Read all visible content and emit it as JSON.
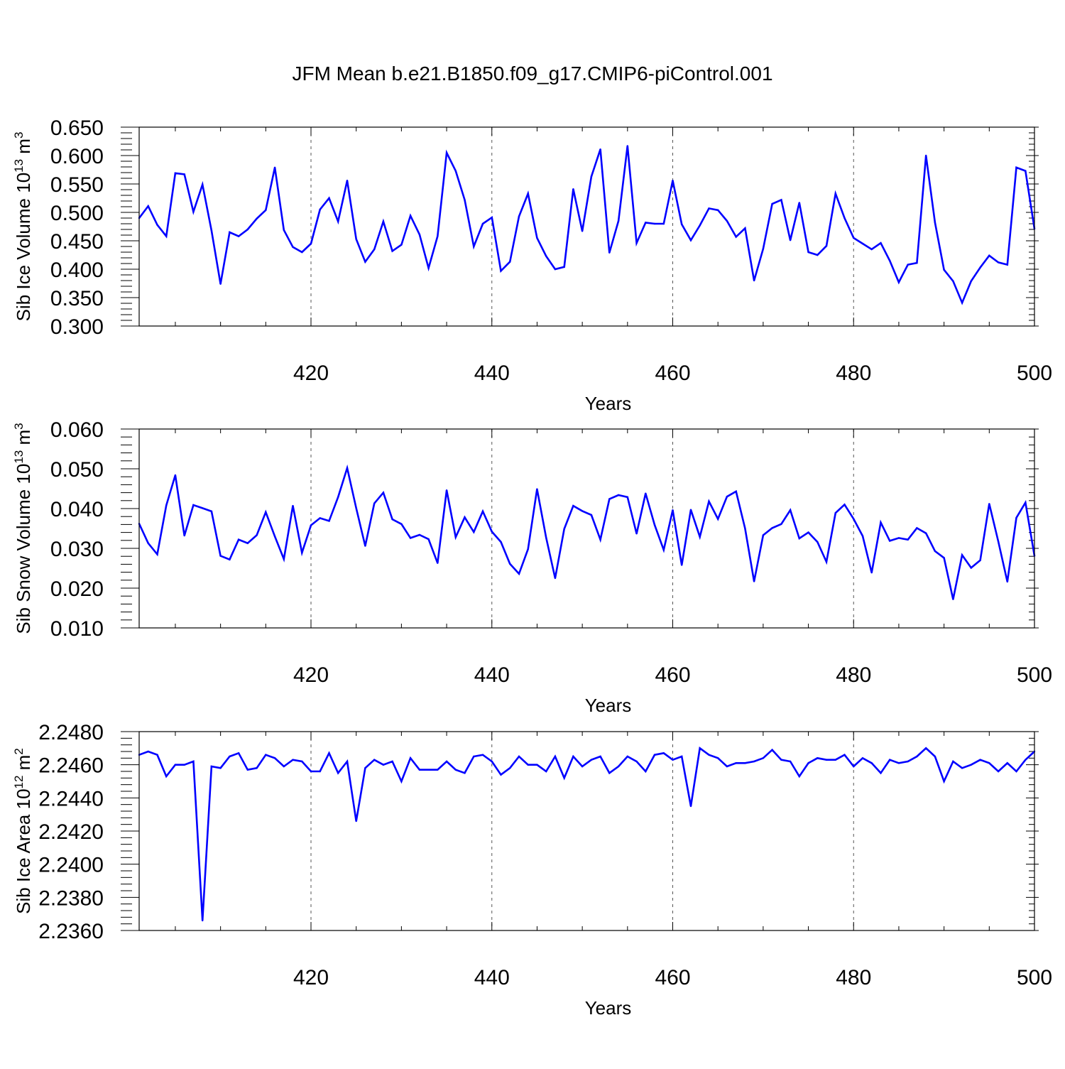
{
  "figure": {
    "title": "JFM Mean b.e21.B1850.f09_g17.CMIP6-piControl.001"
  },
  "colors": {
    "line": "#0000ff",
    "axis": "#000000",
    "grid": "#555555"
  },
  "chart_data": [
    {
      "type": "line",
      "title": "",
      "xlabel": "Years",
      "ylabel": "Sib Ice Volume 10",
      "ylabel_exp": "13",
      "ylabel_unit": " m",
      "ylabel_unit_exp": "3",
      "xlim": [
        401,
        500
      ],
      "ylim": [
        0.3,
        0.65
      ],
      "grid": "vertical dashed at major x ticks",
      "xticks": [
        420,
        440,
        460,
        480,
        500
      ],
      "xtick_labels": [
        "420",
        "440",
        "460",
        "480",
        "500"
      ],
      "yticks": [
        0.3,
        0.35,
        0.4,
        0.45,
        0.5,
        0.55,
        0.6,
        0.65
      ],
      "ytick_labels": [
        "0.300",
        "0.350",
        "0.400",
        "0.450",
        "0.500",
        "0.550",
        "0.600",
        "0.650"
      ],
      "series": [
        {
          "x_start": 401,
          "values": [
            0.49,
            0.511,
            0.478,
            0.458,
            0.569,
            0.567,
            0.501,
            0.549,
            0.468,
            0.374,
            0.465,
            0.458,
            0.47,
            0.489,
            0.504,
            0.579,
            0.469,
            0.439,
            0.43,
            0.445,
            0.505,
            0.525,
            0.484,
            0.556,
            0.453,
            0.413,
            0.435,
            0.484,
            0.432,
            0.443,
            0.494,
            0.461,
            0.402,
            0.458,
            0.605,
            0.573,
            0.522,
            0.44,
            0.48,
            0.491,
            0.397,
            0.413,
            0.493,
            0.533,
            0.455,
            0.423,
            0.4,
            0.404,
            0.541,
            0.467,
            0.563,
            0.611,
            0.429,
            0.485,
            0.617,
            0.446,
            0.482,
            0.48,
            0.48,
            0.556,
            0.479,
            0.451,
            0.477,
            0.507,
            0.504,
            0.485,
            0.457,
            0.472,
            0.38,
            0.436,
            0.515,
            0.522,
            0.451,
            0.517,
            0.43,
            0.425,
            0.441,
            0.533,
            0.49,
            0.455,
            0.445,
            0.435,
            0.446,
            0.415,
            0.377,
            0.408,
            0.411,
            0.6,
            0.482,
            0.399,
            0.379,
            0.341,
            0.379,
            0.403,
            0.424,
            0.412,
            0.408,
            0.579,
            0.573,
            0.471
          ]
        }
      ]
    },
    {
      "type": "line",
      "title": "",
      "xlabel": "Years",
      "ylabel": "Sib Snow Volume 10",
      "ylabel_exp": "13",
      "ylabel_unit": " m",
      "ylabel_unit_exp": "3",
      "xlim": [
        401,
        500
      ],
      "ylim": [
        0.01,
        0.06
      ],
      "grid": "vertical dashed at major x ticks",
      "xticks": [
        420,
        440,
        460,
        480,
        500
      ],
      "xtick_labels": [
        "420",
        "440",
        "460",
        "480",
        "500"
      ],
      "yticks": [
        0.01,
        0.02,
        0.03,
        0.04,
        0.05,
        0.06
      ],
      "ytick_labels": [
        "0.010",
        "0.020",
        "0.030",
        "0.040",
        "0.050",
        "0.060"
      ],
      "series": [
        {
          "x_start": 401,
          "values": [
            0.0362,
            0.0313,
            0.0285,
            0.0408,
            0.0484,
            0.0332,
            0.0409,
            0.0401,
            0.0393,
            0.0281,
            0.0272,
            0.0322,
            0.0313,
            0.0333,
            0.0391,
            0.033,
            0.0273,
            0.0407,
            0.0289,
            0.0358,
            0.0376,
            0.0369,
            0.0429,
            0.0502,
            0.0401,
            0.0306,
            0.0413,
            0.044,
            0.0373,
            0.0361,
            0.0326,
            0.0334,
            0.0323,
            0.0263,
            0.0446,
            0.0328,
            0.0378,
            0.0341,
            0.0393,
            0.0342,
            0.0316,
            0.0261,
            0.0236,
            0.0298,
            0.0449,
            0.0327,
            0.0225,
            0.0349,
            0.0407,
            0.0394,
            0.0384,
            0.0322,
            0.0424,
            0.0434,
            0.0429,
            0.0337,
            0.0438,
            0.0359,
            0.0296,
            0.0396,
            0.0258,
            0.0397,
            0.0329,
            0.0418,
            0.0374,
            0.043,
            0.0443,
            0.035,
            0.0217,
            0.0333,
            0.0351,
            0.0361,
            0.0396,
            0.0325,
            0.034,
            0.0316,
            0.0266,
            0.0389,
            0.041,
            0.0374,
            0.0331,
            0.0239,
            0.0365,
            0.0319,
            0.0326,
            0.0322,
            0.0351,
            0.0338,
            0.0293,
            0.0276,
            0.0172,
            0.0283,
            0.0251,
            0.027,
            0.0412,
            0.0317,
            0.0216,
            0.0377,
            0.0415,
            0.0281
          ]
        }
      ]
    },
    {
      "type": "line",
      "title": "",
      "xlabel": "Years",
      "ylabel": "Sib Ice Area 10",
      "ylabel_exp": "12",
      "ylabel_unit": " m",
      "ylabel_unit_exp": "2",
      "xlim": [
        401,
        500
      ],
      "ylim": [
        2.236,
        2.248
      ],
      "grid": "vertical dashed at major x ticks",
      "xticks": [
        420,
        440,
        460,
        480,
        500
      ],
      "xtick_labels": [
        "420",
        "440",
        "460",
        "480",
        "500"
      ],
      "yticks": [
        2.236,
        2.238,
        2.24,
        2.242,
        2.244,
        2.246,
        2.248
      ],
      "ytick_labels": [
        "2.2360",
        "2.2380",
        "2.2400",
        "2.2420",
        "2.2440",
        "2.2460",
        "2.2480"
      ],
      "series": [
        {
          "x_start": 401,
          "values": [
            2.2466,
            2.2468,
            2.2466,
            2.2453,
            2.246,
            2.246,
            2.2462,
            2.2366,
            2.2459,
            2.2458,
            2.2465,
            2.2467,
            2.2457,
            2.2458,
            2.2466,
            2.2464,
            2.2459,
            2.2463,
            2.2462,
            2.2456,
            2.2456,
            2.2467,
            2.2455,
            2.2462,
            2.2426,
            2.2458,
            2.2463,
            2.246,
            2.2462,
            2.245,
            2.2464,
            2.2457,
            2.2457,
            2.2457,
            2.2462,
            2.2457,
            2.2455,
            2.2465,
            2.2466,
            2.2462,
            2.2454,
            2.2458,
            2.2465,
            2.246,
            2.246,
            2.2456,
            2.2465,
            2.2452,
            2.2465,
            2.2459,
            2.2463,
            2.2465,
            2.2455,
            2.2459,
            2.2465,
            2.2462,
            2.2456,
            2.2466,
            2.2467,
            2.2463,
            2.2465,
            2.2435,
            2.247,
            2.2466,
            2.2464,
            2.2459,
            2.2461,
            2.2461,
            2.2462,
            2.2464,
            2.2469,
            2.2463,
            2.2462,
            2.2453,
            2.2461,
            2.2464,
            2.2463,
            2.2463,
            2.2466,
            2.2459,
            2.2464,
            2.2461,
            2.2455,
            2.2463,
            2.2461,
            2.2462,
            2.2465,
            2.247,
            2.2465,
            2.245,
            2.2462,
            2.2458,
            2.246,
            2.2463,
            2.2461,
            2.2456,
            2.2461,
            2.2456,
            2.2463,
            2.2468
          ]
        }
      ]
    }
  ]
}
